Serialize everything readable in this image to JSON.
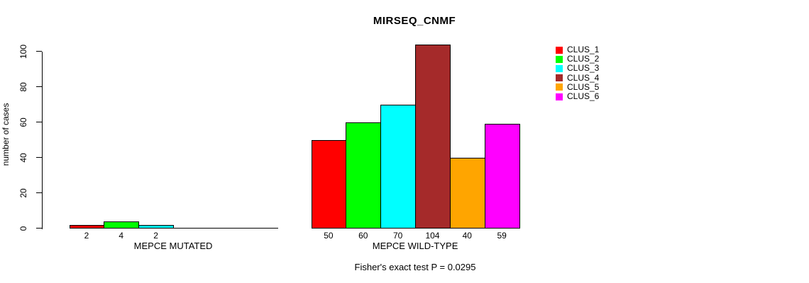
{
  "chart_data": {
    "type": "bar",
    "title": "MIRSEQ_CNMF",
    "ylabel": "number of cases",
    "xlabel": "",
    "ylim": [
      0,
      100
    ],
    "yticks": [
      0,
      20,
      40,
      60,
      80,
      100
    ],
    "grid": false,
    "legend_position": "right",
    "clusters": [
      {
        "name": "CLUS_1",
        "color": "#ff0000"
      },
      {
        "name": "CLUS_2",
        "color": "#00ff00"
      },
      {
        "name": "CLUS_3",
        "color": "#00ffff"
      },
      {
        "name": "CLUS_4",
        "color": "#a52a2a"
      },
      {
        "name": "CLUS_5",
        "color": "#ffa500"
      },
      {
        "name": "CLUS_6",
        "color": "#ff00ff"
      }
    ],
    "groups": [
      {
        "label": "MEPCE MUTATED",
        "values": [
          2,
          4,
          2,
          0,
          0,
          0
        ]
      },
      {
        "label": "MEPCE WILD-TYPE",
        "values": [
          50,
          60,
          70,
          104,
          40,
          59
        ]
      }
    ],
    "footnote": "Fisher's exact test P = 0.0295"
  }
}
